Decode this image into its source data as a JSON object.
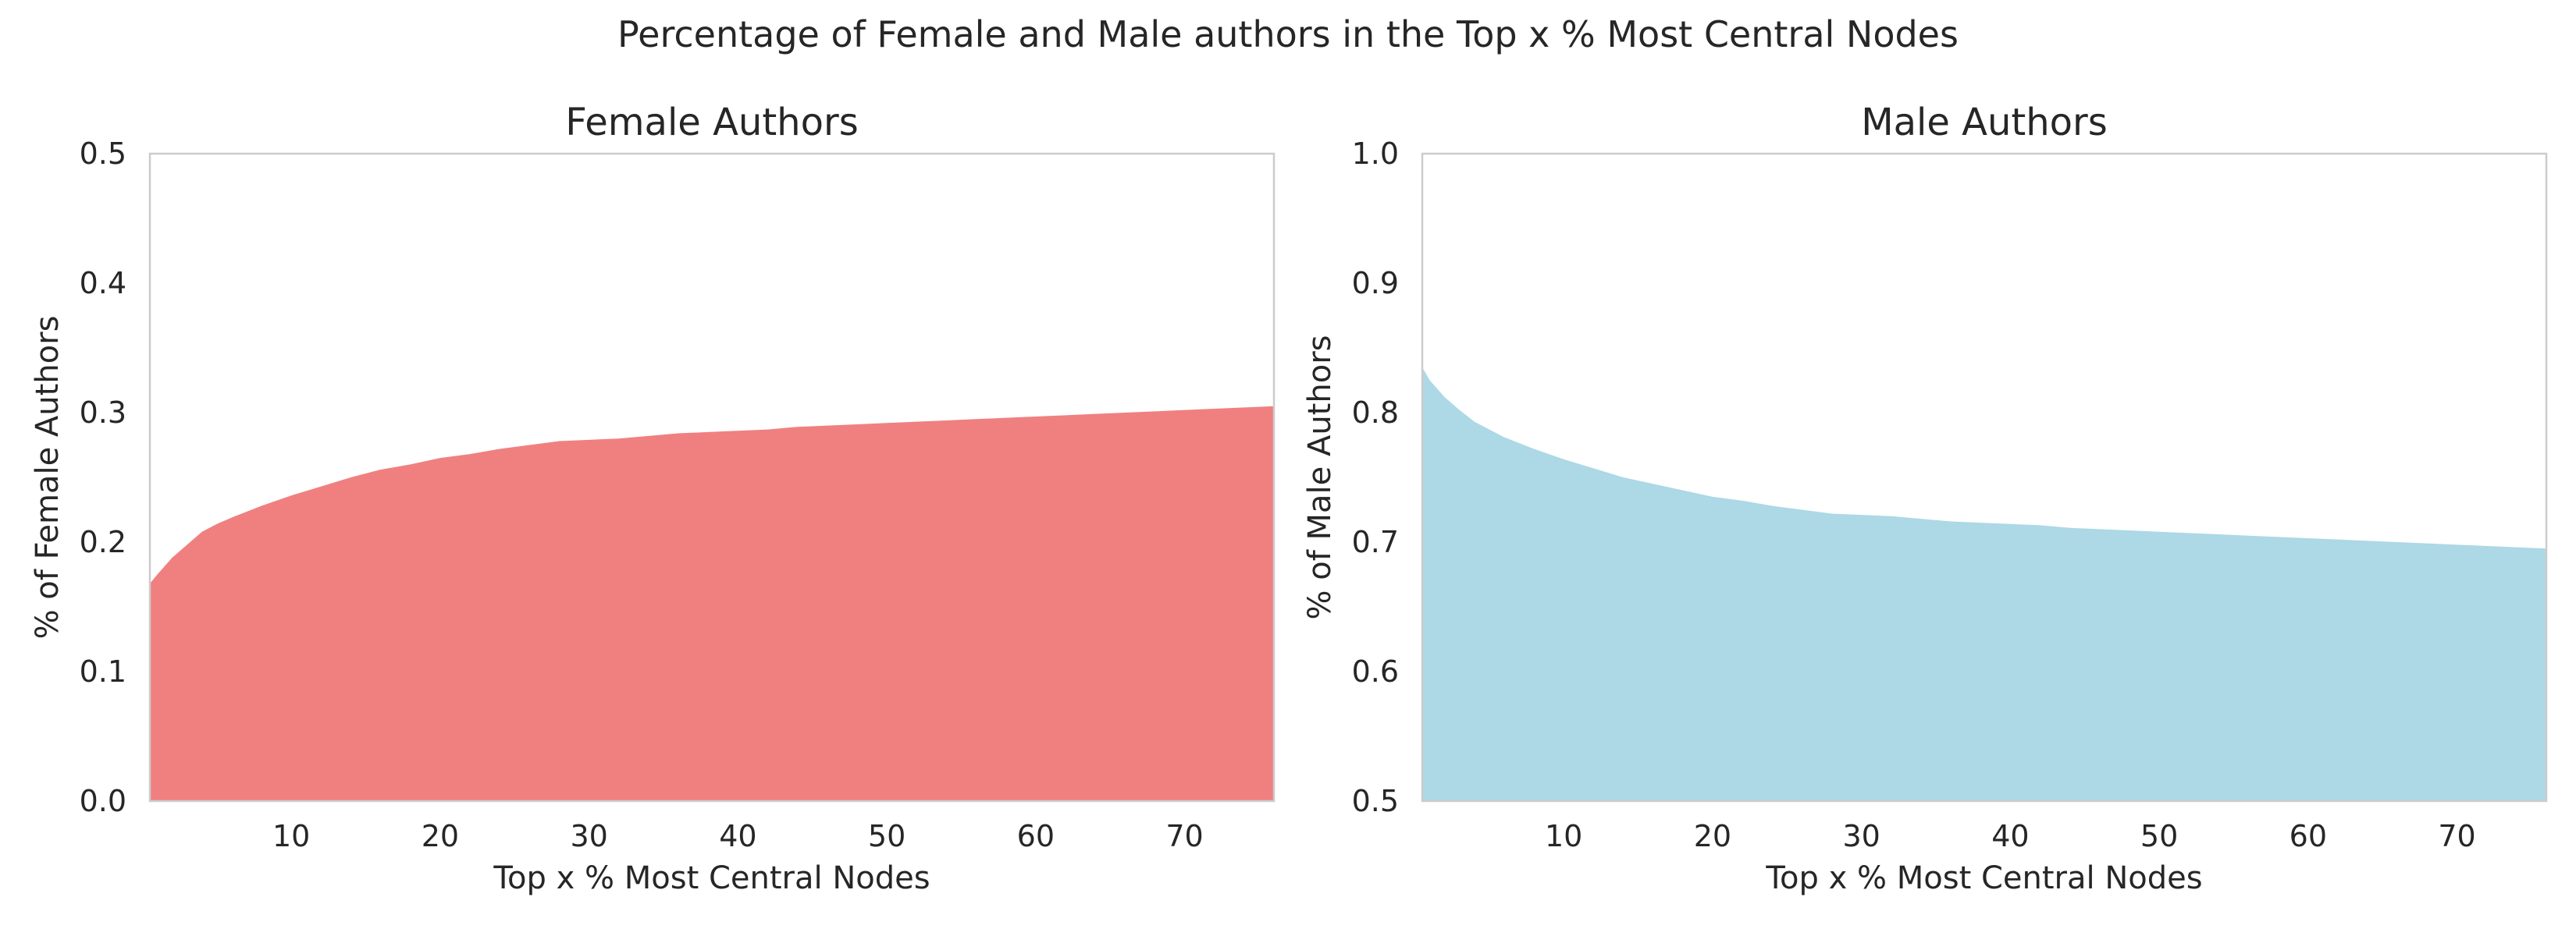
{
  "figure_title": "Percentage of Female and Male authors in the Top x % Most Central Nodes",
  "chart_data": [
    {
      "type": "area",
      "title": "Female Authors",
      "xlabel": "Top x % Most Central Nodes",
      "ylabel": "% of Female Authors",
      "color": "#f08080",
      "xlim": [
        0.5,
        76
      ],
      "ylim": [
        0.0,
        0.5
      ],
      "xticks": [
        10,
        20,
        30,
        40,
        50,
        60,
        70
      ],
      "yticks": [
        0.0,
        0.1,
        0.2,
        0.3,
        0.4,
        0.5
      ],
      "ytick_labels": [
        "0.0",
        "0.1",
        "0.2",
        "0.3",
        "0.4",
        "0.5"
      ],
      "grid": false,
      "series": [
        {
          "x": [
            0.5,
            1,
            2,
            3,
            4,
            5,
            6,
            8,
            10,
            12,
            14,
            16,
            18,
            20,
            22,
            24,
            26,
            28,
            30,
            32,
            34,
            36,
            38,
            40,
            42,
            44,
            46,
            48,
            50,
            52,
            54,
            56,
            58,
            60,
            62,
            64,
            66,
            68,
            70,
            72,
            74,
            76
          ],
          "y": [
            0.168,
            0.175,
            0.188,
            0.198,
            0.208,
            0.214,
            0.219,
            0.228,
            0.236,
            0.243,
            0.25,
            0.256,
            0.26,
            0.265,
            0.268,
            0.272,
            0.275,
            0.278,
            0.279,
            0.28,
            0.282,
            0.284,
            0.285,
            0.286,
            0.287,
            0.289,
            0.29,
            0.291,
            0.292,
            0.293,
            0.294,
            0.295,
            0.296,
            0.297,
            0.298,
            0.299,
            0.3,
            0.301,
            0.302,
            0.303,
            0.304,
            0.305
          ]
        }
      ]
    },
    {
      "type": "area",
      "title": "Male Authors",
      "xlabel": "Top x % Most Central Nodes",
      "ylabel": "% of Male Authors",
      "color": "#add8e6",
      "xlim": [
        0.5,
        76
      ],
      "ylim": [
        0.5,
        1.0
      ],
      "xticks": [
        10,
        20,
        30,
        40,
        50,
        60,
        70
      ],
      "yticks": [
        0.5,
        0.6,
        0.7,
        0.8,
        0.9,
        1.0
      ],
      "ytick_labels": [
        "0.5",
        "0.6",
        "0.7",
        "0.8",
        "0.9",
        "1.0"
      ],
      "grid": false,
      "series": [
        {
          "x": [
            0.5,
            1,
            2,
            3,
            4,
            5,
            6,
            8,
            10,
            12,
            14,
            16,
            18,
            20,
            22,
            24,
            26,
            28,
            30,
            32,
            34,
            36,
            38,
            40,
            42,
            44,
            46,
            48,
            50,
            52,
            54,
            56,
            58,
            60,
            62,
            64,
            66,
            68,
            70,
            72,
            74,
            76
          ],
          "y": [
            0.835,
            0.825,
            0.812,
            0.802,
            0.793,
            0.787,
            0.781,
            0.772,
            0.764,
            0.757,
            0.75,
            0.745,
            0.74,
            0.735,
            0.732,
            0.728,
            0.725,
            0.722,
            0.721,
            0.72,
            0.718,
            0.716,
            0.715,
            0.714,
            0.713,
            0.711,
            0.71,
            0.709,
            0.708,
            0.707,
            0.706,
            0.705,
            0.704,
            0.703,
            0.702,
            0.701,
            0.7,
            0.699,
            0.698,
            0.697,
            0.696,
            0.695
          ]
        }
      ]
    }
  ]
}
